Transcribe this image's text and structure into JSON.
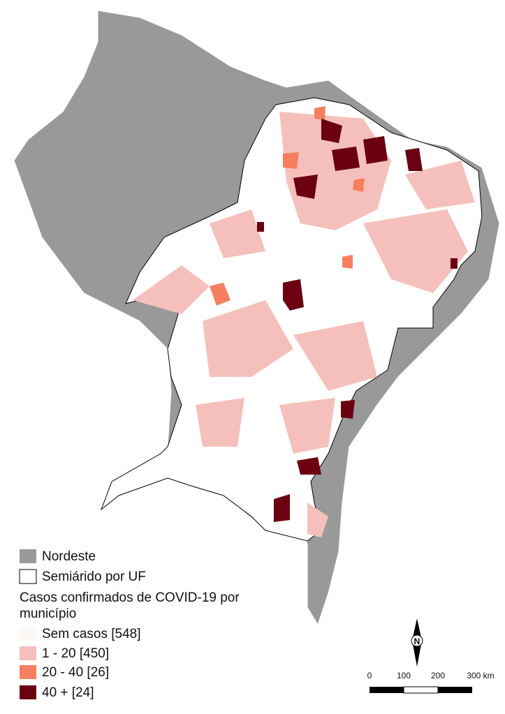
{
  "legend": {
    "layers": [
      "Nordeste",
      "Semiárido por UF"
    ],
    "title_lines": [
      "Casos confirmados de COVID-19 por",
      "município"
    ],
    "classes": [
      "Sem casos [548]",
      "1 - 20 [450]",
      "20 - 40 [26]",
      "40 + [24]"
    ]
  },
  "north_arrow": "N",
  "scale_bar": [
    "0",
    "100",
    "200",
    "300 km"
  ]
}
